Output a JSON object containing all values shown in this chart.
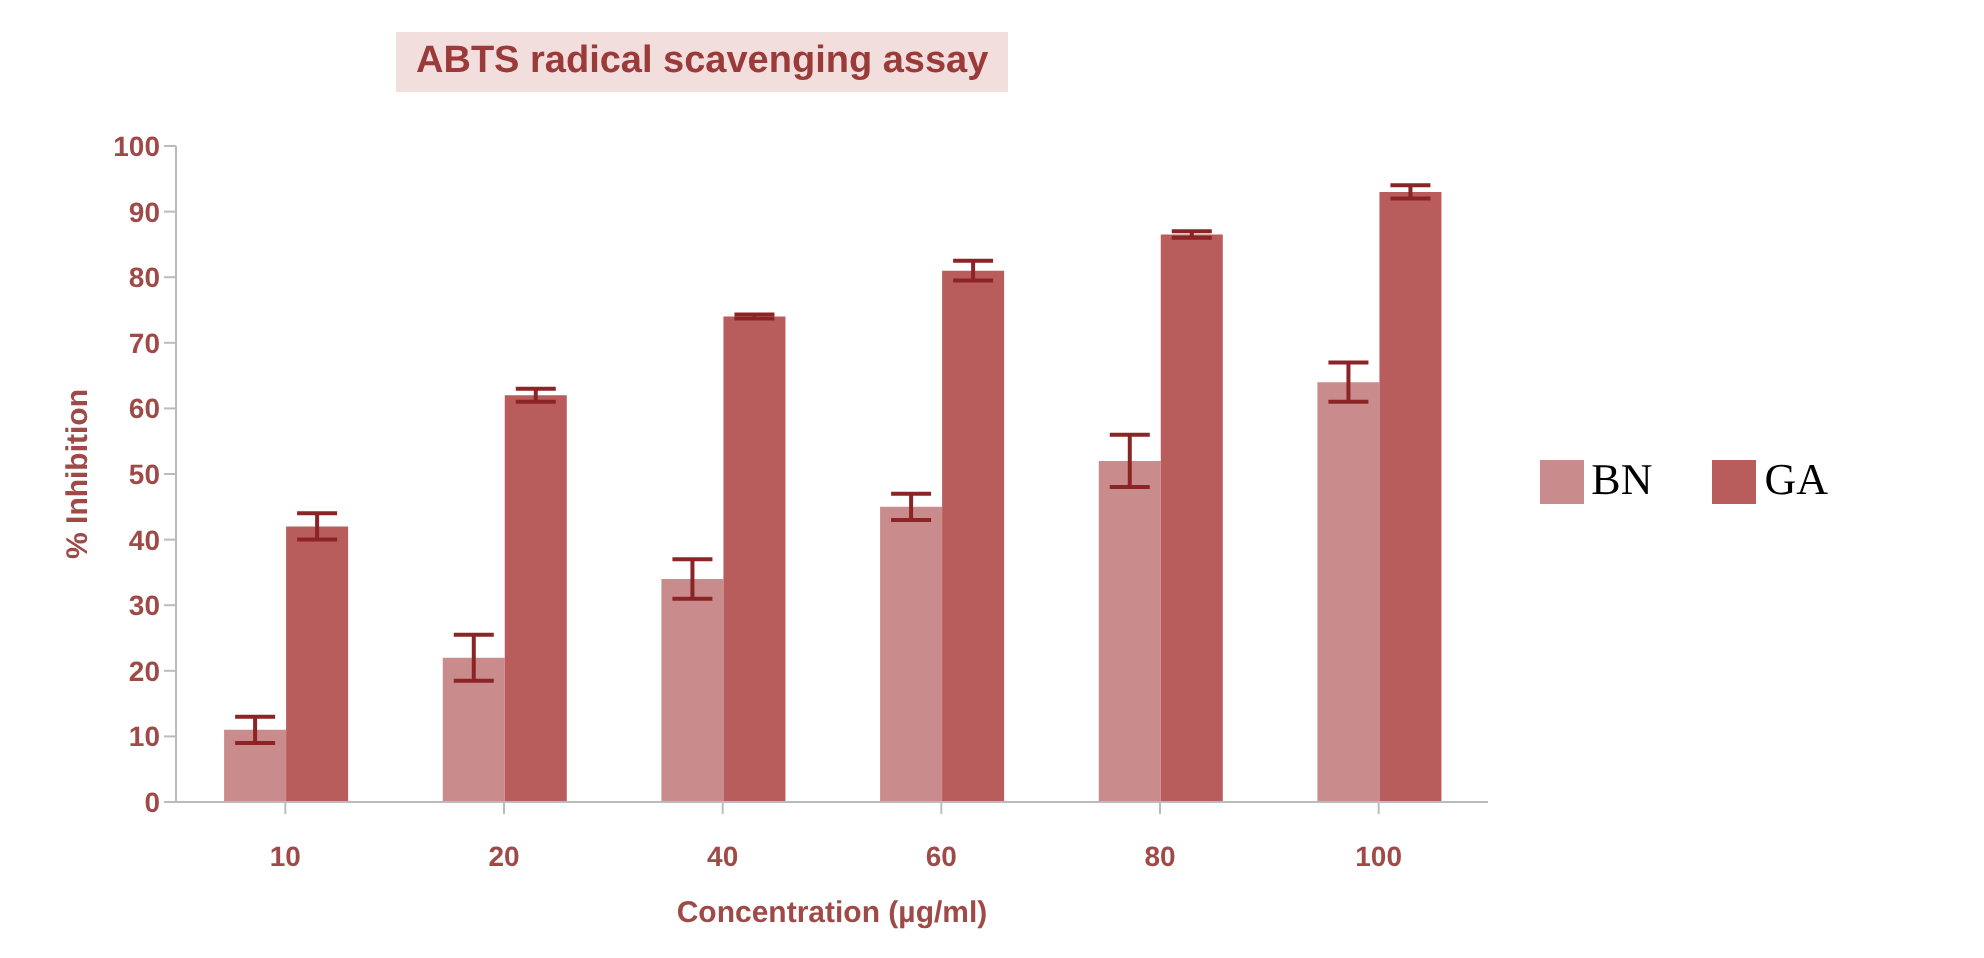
{
  "chart_data": {
    "type": "bar",
    "title": "ABTS radical scavenging assay",
    "xlabel": "Concentration (µg/ml)",
    "ylabel": "% Inhibition",
    "categories": [
      "10",
      "20",
      "40",
      "60",
      "80",
      "100"
    ],
    "series": [
      {
        "name": "BN",
        "color": "#c98b8b",
        "values": [
          11,
          22,
          34,
          45,
          52,
          64
        ],
        "errors": [
          2,
          3.5,
          3,
          2,
          4,
          3
        ]
      },
      {
        "name": "GA",
        "color": "#b85c5c",
        "values": [
          42,
          62,
          74,
          81,
          86.5,
          93
        ],
        "errors": [
          2,
          1,
          0.3,
          1.5,
          0.5,
          1
        ]
      }
    ],
    "ylim": [
      0,
      100
    ],
    "yticks": [
      0,
      10,
      20,
      30,
      40,
      50,
      60,
      70,
      80,
      90,
      100
    ],
    "legend": "right"
  }
}
